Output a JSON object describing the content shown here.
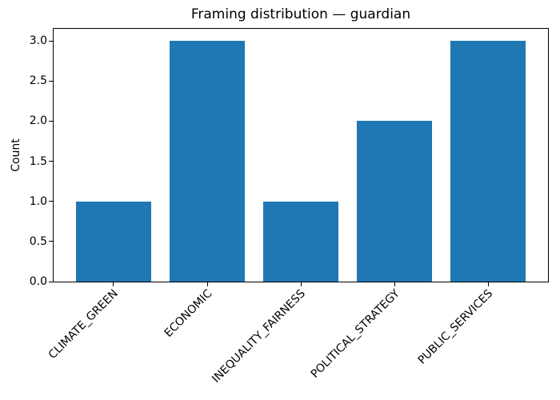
{
  "chart_data": {
    "type": "bar",
    "title": "Framing distribution — guardian",
    "xlabel": "",
    "ylabel": "Count",
    "categories": [
      "CLIMATE_GREEN",
      "ECONOMIC",
      "INEQUALITY_FAIRNESS",
      "POLITICAL_STRATEGY",
      "PUBLIC_SERVICES"
    ],
    "values": [
      1,
      3,
      1,
      2,
      3
    ],
    "yticks": [
      "0.0",
      "0.5",
      "1.0",
      "1.5",
      "2.0",
      "2.5",
      "3.0"
    ],
    "ylim": [
      0,
      3.15
    ],
    "xtick_rotation_deg": 45,
    "grid": false,
    "legend": "none",
    "bar_color": "#1f77b4",
    "text_color": "#000000",
    "background_color": "#ffffff"
  }
}
